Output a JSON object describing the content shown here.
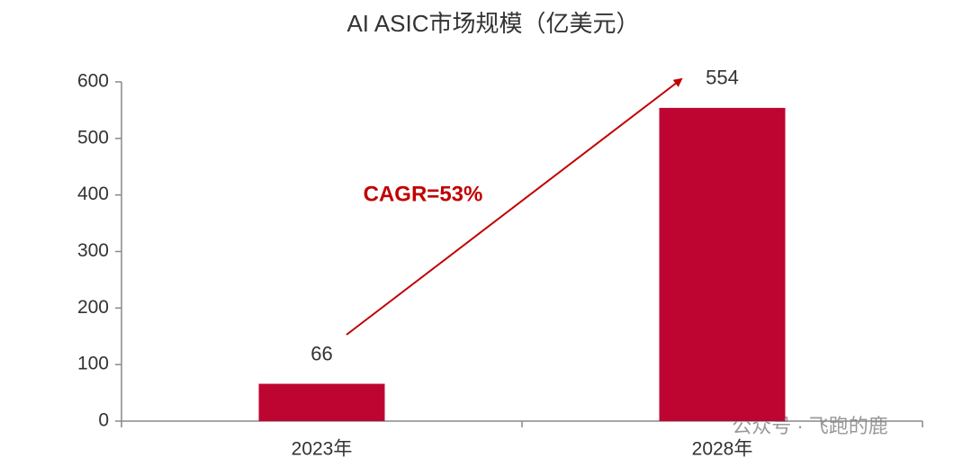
{
  "chart_data": {
    "type": "bar",
    "title": "AI ASIC市场规模（亿美元）",
    "categories": [
      "2023年",
      "2028年"
    ],
    "values": [
      66,
      554
    ],
    "color": "#be0532",
    "ylim": [
      0,
      600
    ],
    "yticks": [
      0,
      100,
      200,
      300,
      400,
      500,
      600
    ],
    "annotation": "CAGR=53%",
    "watermark": "公众号 · 飞跑的鹿"
  }
}
